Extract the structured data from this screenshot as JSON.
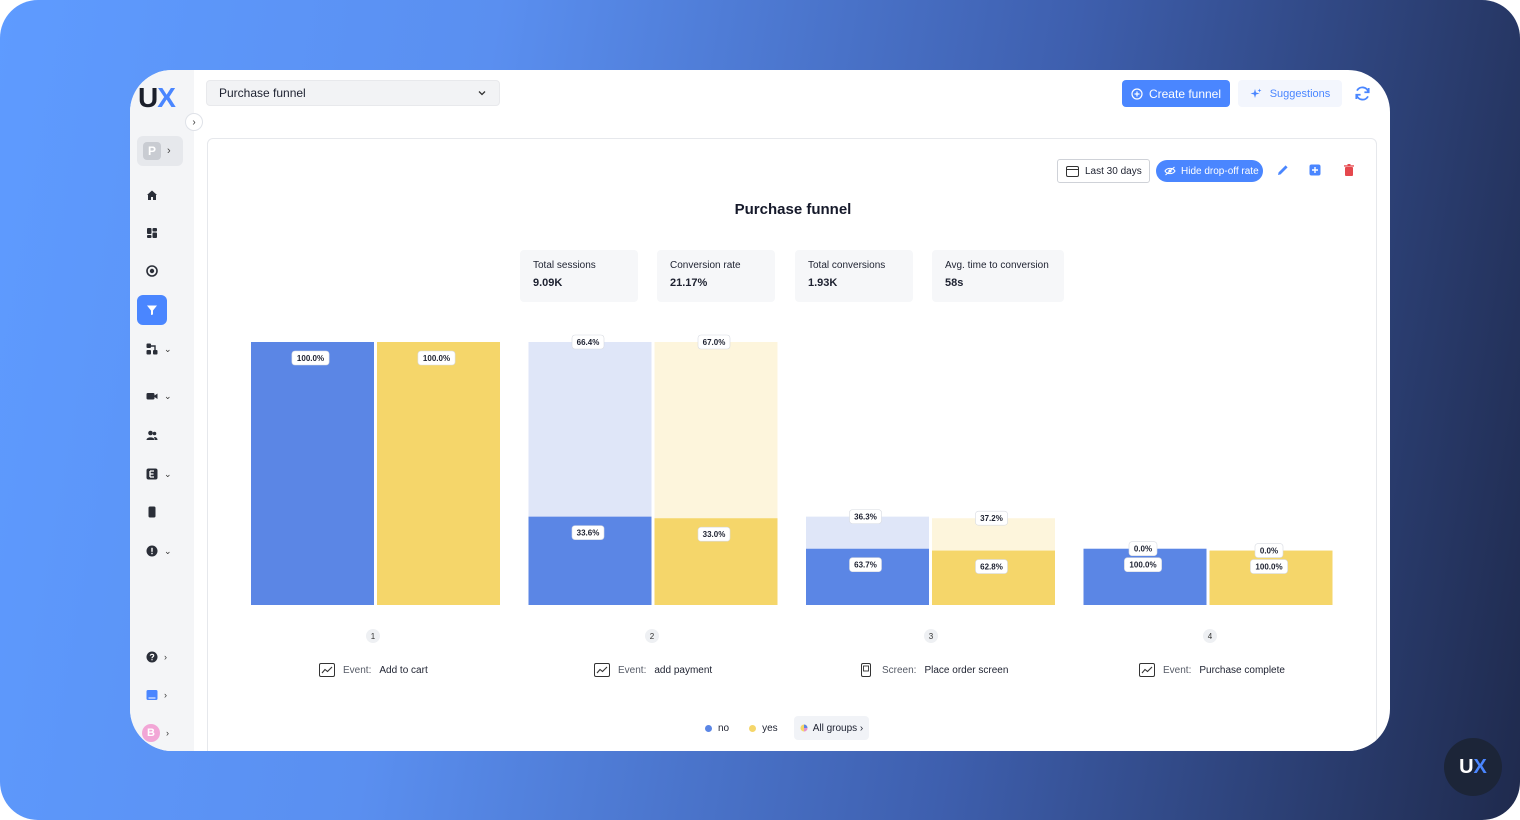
{
  "app": {
    "logo_text": "U",
    "logo_accent": "X",
    "badge_text": "U",
    "badge_accent": "X"
  },
  "colors": {
    "accent": "#4a86ff",
    "no": "#5b86e5",
    "no_dropoff": "#dfe6f8",
    "yes": "#f5d66a",
    "yes_dropoff": "#fdf5dc",
    "danger": "#e5484d"
  },
  "sidebar": {
    "project_initial": "P",
    "user_initial": "B",
    "items": [
      {
        "icon": "home-icon"
      },
      {
        "icon": "dashboard-icon"
      },
      {
        "icon": "heatmap-icon"
      },
      {
        "icon": "funnel-icon",
        "active": true
      },
      {
        "icon": "journey-icon",
        "expandable": true
      },
      {
        "icon": "video-icon",
        "expandable": true
      },
      {
        "icon": "users-icon"
      },
      {
        "icon": "events-icon",
        "expandable": true
      },
      {
        "icon": "device-icon"
      },
      {
        "icon": "alert-icon",
        "expandable": true
      },
      {
        "icon": "help-icon",
        "expandable": true
      },
      {
        "icon": "chat-icon",
        "expandable": true
      }
    ]
  },
  "topbar": {
    "funnel_select": "Purchase funnel",
    "create_label": "Create funnel",
    "suggestions_label": "Suggestions"
  },
  "card": {
    "date_range": "Last 30 days",
    "hide_dropoff_label": "Hide drop-off rate",
    "title": "Purchase funnel",
    "stats": [
      {
        "label": "Total sessions",
        "value": "9.09K"
      },
      {
        "label": "Conversion rate",
        "value": "21.17%"
      },
      {
        "label": "Total conversions",
        "value": "1.93K"
      },
      {
        "label": "Avg. time to conversion",
        "value": "58s"
      }
    ],
    "steps": [
      {
        "num": "1",
        "kind": "Event:",
        "name": "Add to cart",
        "icon": "trend-icon"
      },
      {
        "num": "2",
        "kind": "Event:",
        "name": "add payment",
        "icon": "trend-icon"
      },
      {
        "num": "3",
        "kind": "Screen:",
        "name": "Place order screen",
        "icon": "screen-icon"
      },
      {
        "num": "4",
        "kind": "Event:",
        "name": "Purchase complete",
        "icon": "trend-icon"
      }
    ],
    "legend": {
      "no": "no",
      "yes": "yes",
      "all_groups": "All groups ›"
    }
  },
  "chart_data": {
    "type": "bar",
    "categories": [
      "1",
      "2",
      "3",
      "4"
    ],
    "series": [
      {
        "name": "no",
        "conversion": [
          "100.0%",
          "33.6%",
          "63.7%",
          "100.0%"
        ],
        "dropoff": [
          null,
          "66.4%",
          "36.3%",
          "0.0%"
        ],
        "conversion_of_start": [
          100,
          33.6,
          21.4,
          21.4
        ]
      },
      {
        "name": "yes",
        "conversion": [
          "100.0%",
          "33.0%",
          "62.8%",
          "100.0%"
        ],
        "dropoff": [
          null,
          "67.0%",
          "37.2%",
          "0.0%"
        ],
        "conversion_of_start": [
          100,
          33.0,
          20.7,
          20.7
        ]
      }
    ],
    "ylim": [
      0,
      100
    ],
    "grid": false,
    "legend": "bottom"
  }
}
